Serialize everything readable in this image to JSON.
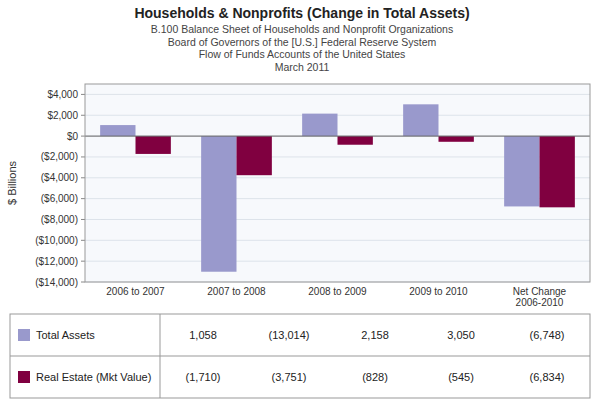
{
  "chart_data": {
    "type": "bar",
    "title": "Households & Nonprofits (Change in Total Assets)",
    "subtitle": [
      "B.100 Balance Sheet of Households and Nonprofit Organizations",
      "Board of Governors of the [U.S.] Federal Reserve System",
      "Flow of Funds Accounts of the United States",
      "March 2011"
    ],
    "ylabel": "$ Billions",
    "categories": [
      "2006 to 2007",
      "2007 to 2008",
      "2008 to 2009",
      "2009 to 2010",
      "Net Change\n2006-2010"
    ],
    "series": [
      {
        "name": "Total Assets",
        "color": "#9999cc",
        "values": [
          1058,
          -13014,
          2158,
          3050,
          -6748
        ],
        "value_labels": [
          "1,058",
          "(13,014)",
          "2,158",
          "3,050",
          "(6,748)"
        ]
      },
      {
        "name": "Real Estate (Mkt Value)",
        "color": "#800040",
        "values": [
          -1710,
          -3751,
          -828,
          -545,
          -6834
        ],
        "value_labels": [
          "(1,710)",
          "(3,751)",
          "(828)",
          "(545)",
          "(6,834)"
        ]
      }
    ],
    "ylim": [
      -14000,
      5000
    ],
    "yticks": [
      {
        "value": 4000,
        "label": "$4,000"
      },
      {
        "value": 2000,
        "label": "$2,000"
      },
      {
        "value": 0,
        "label": "$0"
      },
      {
        "value": -2000,
        "label": "($2,000)"
      },
      {
        "value": -4000,
        "label": "($4,000)"
      },
      {
        "value": -6000,
        "label": "($6,000)"
      },
      {
        "value": -8000,
        "label": "($8,000)"
      },
      {
        "value": -10000,
        "label": "($10,000)"
      },
      {
        "value": -12000,
        "label": "($12,000)"
      },
      {
        "value": -14000,
        "label": "($14,000)"
      }
    ],
    "grid": true
  }
}
